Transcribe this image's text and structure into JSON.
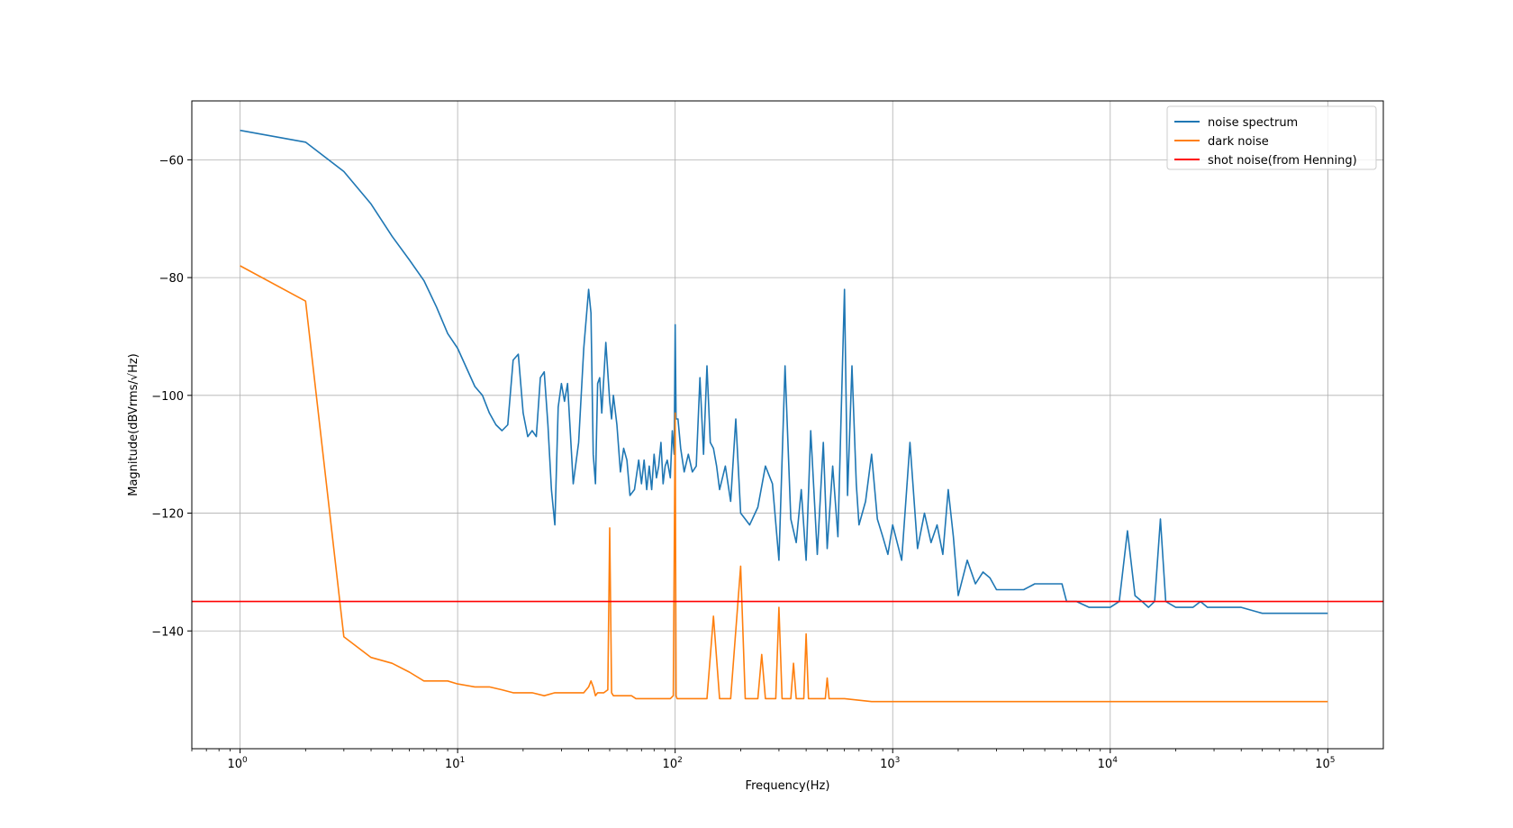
{
  "chart_data": {
    "type": "line",
    "title": "",
    "xlabel": "Frequency(Hz)",
    "ylabel": "Magnitude(dBVrms/√Hz)",
    "xscale": "log",
    "xlim": [
      0.6,
      180000
    ],
    "ylim": [
      -160,
      -50
    ],
    "grid": true,
    "legend_position": "top-right",
    "x_ticks": [
      {
        "value": 1,
        "label_base": "10",
        "label_exp": "0"
      },
      {
        "value": 10,
        "label_base": "10",
        "label_exp": "1"
      },
      {
        "value": 100,
        "label_base": "10",
        "label_exp": "2"
      },
      {
        "value": 1000,
        "label_base": "10",
        "label_exp": "3"
      },
      {
        "value": 10000,
        "label_base": "10",
        "label_exp": "4"
      },
      {
        "value": 100000,
        "label_base": "10",
        "label_exp": "5"
      }
    ],
    "y_ticks": [
      {
        "value": -60,
        "label": "−60"
      },
      {
        "value": -80,
        "label": "−80"
      },
      {
        "value": -100,
        "label": "−100"
      },
      {
        "value": -120,
        "label": "−120"
      },
      {
        "value": -140,
        "label": "−140"
      }
    ],
    "series": [
      {
        "name": "noise spectrum",
        "color": "#1f77b4",
        "x": [
          1,
          2,
          3,
          4,
          5,
          6,
          7,
          8,
          9,
          10,
          12,
          13,
          14,
          15,
          16,
          17,
          18,
          19,
          20,
          21,
          22,
          23,
          24,
          25,
          26,
          27,
          28,
          29,
          30,
          31,
          32,
          34,
          36,
          38,
          40,
          41,
          42,
          43,
          44,
          45,
          46,
          48,
          50,
          51,
          52,
          54,
          56,
          58,
          60,
          62,
          65,
          68,
          70,
          72,
          74,
          76,
          78,
          80,
          82,
          84,
          86,
          88,
          90,
          92,
          95,
          97,
          99,
          100,
          101,
          103,
          106,
          110,
          115,
          120,
          125,
          130,
          135,
          140,
          145,
          150,
          155,
          160,
          170,
          180,
          190,
          200,
          210,
          220,
          240,
          260,
          280,
          300,
          320,
          340,
          360,
          380,
          400,
          420,
          450,
          480,
          500,
          530,
          560,
          600,
          620,
          650,
          680,
          700,
          750,
          800,
          850,
          900,
          950,
          1000,
          1100,
          1200,
          1300,
          1400,
          1500,
          1600,
          1700,
          1800,
          1900,
          2000,
          2200,
          2400,
          2600,
          2800,
          3000,
          3500,
          4000,
          4500,
          5000,
          5500,
          6000,
          6300,
          6500,
          7000,
          8000,
          9000,
          10000,
          11000,
          12000,
          13000,
          14000,
          15000,
          16000,
          17000,
          18000,
          20000,
          22000,
          24000,
          26000,
          28000,
          30000,
          35000,
          40000,
          50000,
          60000,
          70000,
          80000,
          90000,
          100000
        ],
        "y": [
          -55,
          -57,
          -62,
          -67.5,
          -73,
          -77,
          -80.5,
          -85,
          -89.5,
          -92,
          -98.5,
          -100,
          -103,
          -105,
          -106,
          -105,
          -94,
          -93,
          -103,
          -107,
          -106,
          -107,
          -97,
          -96,
          -105,
          -116,
          -122,
          -102,
          -98,
          -101,
          -98,
          -115,
          -108,
          -92,
          -82,
          -86,
          -110,
          -115,
          -98,
          -97,
          -103,
          -91,
          -101,
          -104,
          -100,
          -105,
          -113,
          -109,
          -111,
          -117,
          -116,
          -111,
          -115,
          -111,
          -116,
          -112,
          -116,
          -110,
          -114,
          -112,
          -108,
          -115,
          -112,
          -111,
          -114,
          -106,
          -110,
          -88,
          -104,
          -104,
          -109,
          -113,
          -110,
          -113,
          -112,
          -97,
          -110,
          -95,
          -108,
          -109,
          -112,
          -116,
          -112,
          -118,
          -104,
          -120,
          -121,
          -122,
          -119,
          -112,
          -115,
          -128,
          -95,
          -121,
          -125,
          -116,
          -128,
          -106,
          -127,
          -108,
          -126,
          -112,
          -124,
          -82,
          -117,
          -95,
          -115,
          -122,
          -118,
          -110,
          -121,
          -124,
          -127,
          -122,
          -128,
          -108,
          -126,
          -120,
          -125,
          -122,
          -127,
          -116,
          -124,
          -134,
          -128,
          -132,
          -130,
          -131,
          -133,
          -133,
          -133,
          -132,
          -132,
          -132,
          -132,
          -135,
          -135,
          -135,
          -136,
          -136,
          -136,
          -135,
          -123,
          -134,
          -135,
          -136,
          -135,
          -121,
          -135,
          -136,
          -136,
          -136,
          -135,
          -136,
          -136,
          -136,
          -136,
          -137,
          -137,
          -137,
          -137,
          -137,
          -137
        ]
      },
      {
        "name": "dark noise",
        "color": "#ff7f0e",
        "x": [
          1,
          2,
          3,
          4,
          5,
          6,
          7,
          8,
          9,
          10,
          12,
          14,
          16,
          18,
          20,
          22,
          25,
          28,
          30,
          33,
          36,
          38,
          40,
          41,
          42,
          43,
          44,
          45,
          47,
          49,
          50,
          51,
          52,
          53,
          55,
          58,
          60,
          63,
          66,
          70,
          75,
          80,
          85,
          90,
          95,
          98,
          100,
          101,
          102,
          103,
          110,
          120,
          140,
          150,
          160,
          180,
          200,
          210,
          240,
          250,
          260,
          290,
          300,
          310,
          340,
          350,
          360,
          390,
          400,
          410,
          490,
          500,
          510,
          600,
          800,
          1000,
          1500,
          2000,
          3000,
          5000,
          7000,
          10000,
          15000,
          20000,
          30000,
          50000,
          70000,
          100000
        ],
        "y": [
          -78,
          -84,
          -141,
          -144.5,
          -145.5,
          -147,
          -148.5,
          -148.5,
          -148.5,
          -149,
          -149.5,
          -149.5,
          -150,
          -150.5,
          -150.5,
          -150.5,
          -151,
          -150.5,
          -150.5,
          -150.5,
          -150.5,
          -150.5,
          -149.5,
          -148.5,
          -149.5,
          -151,
          -150.5,
          -150.5,
          -150.5,
          -150,
          -122.5,
          -150.5,
          -151,
          -151,
          -151,
          -151,
          -151,
          -151,
          -151.5,
          -151.5,
          -151.5,
          -151.5,
          -151.5,
          -151.5,
          -151.5,
          -151,
          -103,
          -151,
          -151.5,
          -151.5,
          -151.5,
          -151.5,
          -151.5,
          -137.5,
          -151.5,
          -151.5,
          -129,
          -151.5,
          -151.5,
          -144,
          -151.5,
          -151.5,
          -136,
          -151.5,
          -151.5,
          -145.5,
          -151.5,
          -151.5,
          -140.5,
          -151.5,
          -151.5,
          -148,
          -151.5,
          -151.5,
          -152,
          -152,
          -152,
          -152,
          -152,
          -152,
          -152,
          -152,
          -152,
          -152,
          -152,
          -152,
          -152,
          -152
        ]
      },
      {
        "name": "shot noise(from Henning)",
        "color": "#ff0000",
        "x": [
          0.6,
          180000
        ],
        "y": [
          -135,
          -135
        ]
      }
    ]
  }
}
